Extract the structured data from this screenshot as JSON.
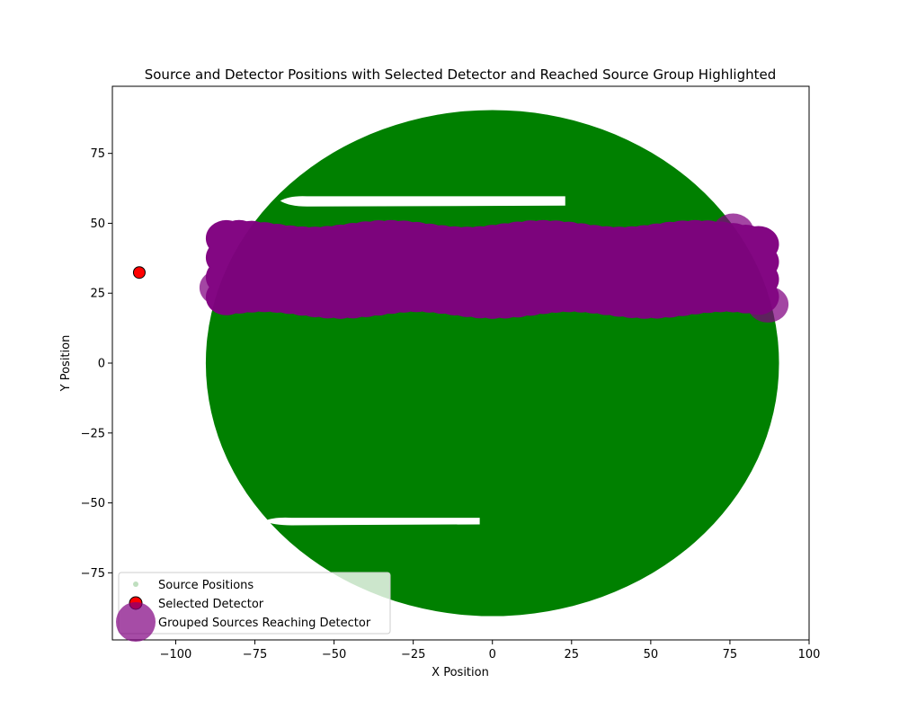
{
  "chart_data": {
    "type": "scatter",
    "title": "Source and Detector Positions with Selected Detector and Reached Source Group Highlighted",
    "xlabel": "X Position",
    "ylabel": "Y Position",
    "xlim": [
      -120,
      100
    ],
    "ylim": [
      -99,
      99
    ],
    "xticks": [
      -100,
      -75,
      -50,
      -25,
      0,
      25,
      50,
      75,
      100
    ],
    "yticks": [
      -75,
      -50,
      -25,
      0,
      25,
      50,
      75
    ],
    "grid": false,
    "legend_position": "lower-left",
    "colors": {
      "sources": "#008000",
      "detector": "#ff0000",
      "grouped": "#800080"
    },
    "series": [
      {
        "name": "Source Positions",
        "kind": "disk-region",
        "center": [
          0,
          0
        ],
        "radius": 90.5,
        "gaps": [
          {
            "x": [
              -67,
              23
            ],
            "y": [
              56,
              60
            ]
          },
          {
            "x": [
              -72,
              -4
            ],
            "y": [
              -58,
              -55
            ]
          }
        ]
      },
      {
        "name": "Selected Detector",
        "points": [
          [
            -111.5,
            32.4
          ]
        ]
      },
      {
        "name": "Grouped Sources Reaching Detector",
        "kind": "band",
        "x": [
          -86,
          90
        ],
        "y": [
          17,
          50
        ],
        "extra_points": [
          [
            -80,
            42
          ],
          [
            76,
            47
          ],
          [
            79,
            40
          ],
          [
            87,
            21
          ],
          [
            -86,
            27
          ]
        ]
      }
    ]
  }
}
